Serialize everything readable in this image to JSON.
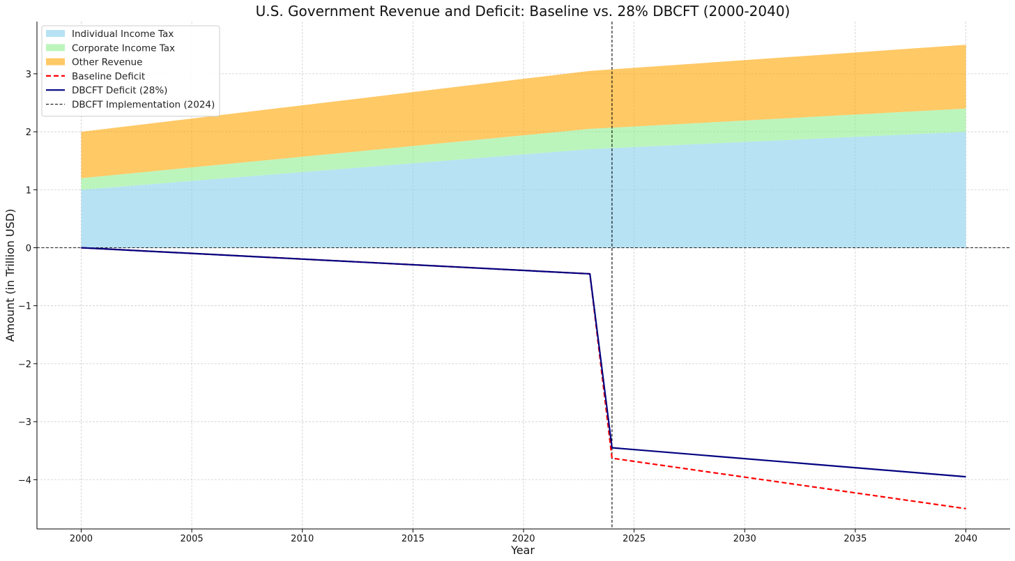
{
  "chart_data": {
    "type": "area",
    "title": "U.S. Government Revenue and Deficit: Baseline vs. 28% DBCFT (2000-2040)",
    "xlabel": "Year",
    "ylabel": "Amount (in Trillion USD)",
    "xlim": [
      1998,
      2042
    ],
    "ylim": [
      -4.85,
      3.9
    ],
    "x_ticks": [
      2000,
      2005,
      2010,
      2015,
      2020,
      2025,
      2030,
      2035,
      2040
    ],
    "y_ticks": [
      -4,
      -3,
      -2,
      -1,
      0,
      1,
      2,
      3
    ],
    "y_tick_labels": [
      "−4",
      "−3",
      "−2",
      "−1",
      "0",
      "1",
      "2",
      "3"
    ],
    "grid": true,
    "legend_position": "top-left",
    "stacked_areas": [
      {
        "name": "Individual Income Tax",
        "color": "#87ceeb",
        "x": [
          2000,
          2023,
          2040
        ],
        "values": [
          1.0,
          1.7,
          2.0
        ]
      },
      {
        "name": "Corporate Income Tax",
        "color": "#90ee90",
        "x": [
          2000,
          2023,
          2040
        ],
        "values": [
          0.2,
          0.35,
          0.4
        ]
      },
      {
        "name": "Other Revenue",
        "color": "#ffa500",
        "x": [
          2000,
          2023,
          2040
        ],
        "values": [
          0.8,
          1.0,
          1.1
        ]
      }
    ],
    "series": [
      {
        "name": "Baseline Deficit",
        "color": "#ff0000",
        "style": "dashed",
        "x": [
          2000,
          2023,
          2024,
          2040
        ],
        "values": [
          0.0,
          -0.45,
          -3.63,
          -4.5
        ]
      },
      {
        "name": "DBCFT Deficit (28%)",
        "color": "#000080",
        "style": "solid",
        "x": [
          2000,
          2023,
          2024,
          2040
        ],
        "values": [
          0.0,
          -0.45,
          -3.45,
          -3.95
        ]
      }
    ],
    "reference_lines": [
      {
        "name": "DBCFT Implementation (2024)",
        "orientation": "vertical",
        "value": 2024,
        "color": "#000000",
        "style": "dashed"
      },
      {
        "name": "",
        "orientation": "horizontal",
        "value": 0,
        "color": "#000000",
        "style": "dashed"
      }
    ]
  }
}
